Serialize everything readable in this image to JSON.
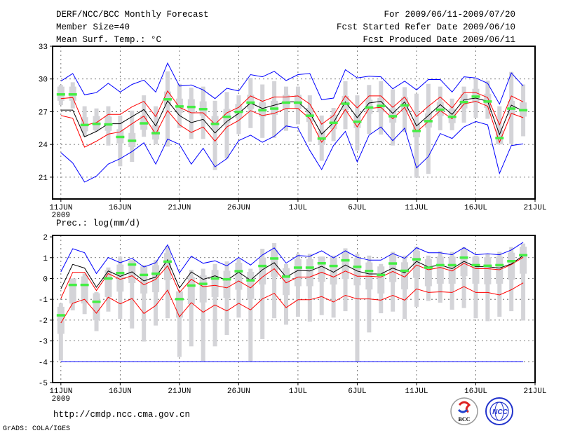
{
  "header": {
    "title": "DERF/NCC/BCC Monthly Forecast",
    "member_size": "Member Size=40",
    "variable": "Mean Surf. Temp.: °C",
    "period": "For 2009/06/11-2009/07/20",
    "start_date": "Fcst Started Refer Date 2009/06/10",
    "produced_date": "Fcst Produced Date 2009/06/11"
  },
  "footer": {
    "url": "http://cmdp.ncc.cma.gov.cn",
    "credit": "GrADS: COLA/IGES",
    "logos": [
      "BCC",
      "NCC"
    ]
  },
  "colors": {
    "max_min": "#0000ff",
    "spread": "#ff0000",
    "mean": "#000000",
    "marker": "#44ee44",
    "bars": "#d4d4d8"
  },
  "chart_data": [
    {
      "type": "line",
      "title": "Mean Surf. Temp.: °C",
      "xlabel": "",
      "ylabel": "",
      "x_tick_labels": [
        "11JUN",
        "16JUN",
        "21JUN",
        "26JUN",
        "1JUL",
        "6JUL",
        "11JUL",
        "16JUL",
        "21JUL"
      ],
      "x_tick_days": [
        0,
        5,
        10,
        15,
        20,
        25,
        30,
        35,
        40
      ],
      "year_label": "2009",
      "xlim": [
        -0.7,
        40
      ],
      "ylim": [
        19,
        33
      ],
      "y_ticks": [
        21,
        24,
        27,
        30,
        33
      ],
      "grid": true,
      "series": [
        {
          "name": "max",
          "color": "#0000ff",
          "values": [
            29.8,
            30.5,
            28.55,
            28.75,
            29.6,
            28.8,
            29.5,
            29.9,
            28.8,
            31.45,
            29.35,
            29.45,
            29.0,
            28.2,
            29.15,
            28.9,
            30.4,
            30.2,
            30.7,
            29.85,
            30.4,
            30.5,
            28.1,
            28.25,
            30.85,
            30.1,
            30.25,
            30.2,
            29.1,
            29.8,
            29.0,
            29.95,
            29.95,
            28.8,
            30.2,
            30.1,
            29.6,
            27.7,
            30.55,
            29.35
          ]
        },
        {
          "name": "min",
          "color": "#0000ff",
          "values": [
            23.25,
            22.3,
            20.55,
            21.1,
            22.2,
            22.7,
            23.35,
            24.15,
            22.2,
            24.5,
            24.0,
            22.2,
            23.65,
            21.95,
            22.7,
            24.35,
            24.85,
            24.2,
            24.75,
            25.7,
            25.5,
            23.45,
            21.7,
            23.9,
            25.2,
            22.4,
            24.85,
            25.6,
            24.35,
            25.5,
            21.85,
            22.9,
            25.0,
            24.55,
            25.6,
            26.1,
            25.8,
            21.35,
            23.9,
            24.05
          ]
        },
        {
          "name": "upper",
          "color": "#ff0000",
          "values": [
            28.2,
            28.3,
            25.75,
            26.0,
            26.75,
            26.75,
            27.45,
            27.95,
            26.55,
            28.9,
            27.4,
            26.9,
            26.9,
            25.85,
            26.9,
            27.4,
            28.45,
            27.95,
            28.35,
            28.35,
            28.45,
            27.7,
            25.85,
            26.65,
            28.45,
            27.35,
            28.45,
            28.45,
            27.4,
            28.35,
            26.55,
            27.5,
            28.35,
            27.35,
            28.75,
            28.75,
            28.3,
            25.8,
            28.45,
            27.9
          ]
        },
        {
          "name": "lower",
          "color": "#ff0000",
          "values": [
            26.65,
            26.4,
            23.75,
            24.3,
            24.95,
            25.15,
            25.9,
            26.6,
            24.95,
            27.1,
            25.8,
            25.1,
            25.6,
            24.3,
            25.6,
            26.2,
            27.1,
            26.65,
            26.85,
            27.3,
            27.3,
            26.35,
            24.2,
            25.5,
            27.2,
            25.6,
            27.3,
            27.4,
            26.35,
            27.4,
            25.15,
            26.1,
            27.1,
            26.35,
            27.7,
            27.95,
            27.5,
            24.2,
            26.85,
            26.45
          ]
        },
        {
          "name": "mean",
          "color": "#000000",
          "values": [
            27.15,
            27.15,
            24.7,
            25.2,
            25.9,
            25.9,
            26.55,
            27.2,
            25.7,
            28.0,
            26.65,
            26.0,
            26.3,
            25.05,
            26.1,
            26.85,
            27.8,
            27.3,
            27.6,
            27.9,
            27.9,
            26.9,
            24.95,
            26.0,
            27.9,
            26.45,
            27.8,
            27.95,
            26.85,
            27.9,
            25.7,
            26.65,
            27.65,
            26.75,
            28.1,
            28.25,
            27.95,
            24.9,
            27.6,
            27.05
          ]
        }
      ],
      "markers": [
        28.6,
        28.6,
        25.8,
        25.9,
        25.85,
        24.7,
        24.35,
        25.95,
        25.05,
        28.15,
        27.5,
        27.45,
        27.25,
        25.9,
        26.55,
        27.0,
        27.85,
        27.15,
        27.3,
        27.85,
        27.85,
        26.65,
        24.55,
        26.0,
        27.75,
        26.1,
        27.4,
        27.55,
        26.6,
        27.6,
        25.25,
        26.15,
        27.2,
        26.55,
        27.9,
        28.4,
        27.95,
        24.6,
        27.3,
        27.15
      ],
      "bars": {
        "whisker_low": [
          27.6,
          27.3,
          24.7,
          25.2,
          23.9,
          22.0,
          22.4,
          24.7,
          24.0,
          23.8,
          25.5,
          24.5,
          24.5,
          21.65,
          22.7,
          24.95,
          25.5,
          24.6,
          24.6,
          25.25,
          25.85,
          24.25,
          22.5,
          24.3,
          25.4,
          23.45,
          24.95,
          24.9,
          23.9,
          25.15,
          20.95,
          21.3,
          25.3,
          25.3,
          26.0,
          26.45,
          26.35,
          24.0,
          24.05,
          24.75
        ],
        "whisker_high": [
          29.45,
          29.7,
          27.5,
          27.3,
          27.5,
          26.65,
          27.1,
          28.5,
          27.5,
          30.7,
          29.55,
          29.2,
          29.3,
          28.0,
          28.8,
          28.5,
          30.1,
          29.5,
          29.8,
          29.3,
          29.3,
          28.5,
          26.65,
          27.35,
          29.8,
          28.5,
          29.45,
          29.8,
          29.05,
          29.25,
          28.65,
          29.55,
          29.3,
          28.2,
          29.3,
          30.0,
          29.85,
          27.5,
          30.65,
          29.5
        ],
        "box_low": [
          28.0,
          28.0,
          25.2,
          25.3,
          25.25,
          24.1,
          23.75,
          25.35,
          24.45,
          27.55,
          26.9,
          26.85,
          26.65,
          25.3,
          25.95,
          26.4,
          27.25,
          26.55,
          26.7,
          27.25,
          27.25,
          26.05,
          23.95,
          25.4,
          27.15,
          25.5,
          26.8,
          26.95,
          26.0,
          27.0,
          24.65,
          25.55,
          26.6,
          25.95,
          27.3,
          27.8,
          27.35,
          24.0,
          26.7,
          26.55
        ],
        "box_high": [
          29.3,
          29.3,
          26.5,
          26.6,
          26.55,
          25.4,
          25.05,
          26.65,
          25.75,
          28.85,
          28.2,
          28.15,
          27.95,
          26.6,
          27.25,
          27.7,
          28.55,
          27.85,
          28.0,
          28.55,
          28.55,
          27.35,
          25.25,
          26.7,
          28.45,
          26.8,
          28.1,
          28.25,
          27.3,
          28.3,
          25.95,
          26.85,
          27.9,
          27.25,
          28.6,
          29.1,
          28.65,
          25.3,
          28.0,
          27.85
        ]
      }
    },
    {
      "type": "line",
      "title": "Prec.: log(mm/d)",
      "xlabel": "",
      "ylabel": "",
      "x_tick_labels": [
        "11JUN",
        "16JUN",
        "21JUN",
        "26JUN",
        "1JUL",
        "6JUL",
        "11JUL",
        "16JUL",
        "21JUL"
      ],
      "x_tick_days": [
        0,
        5,
        10,
        15,
        20,
        25,
        30,
        35,
        40
      ],
      "year_label": "2009",
      "xlim": [
        -0.7,
        40
      ],
      "ylim": [
        -5,
        2.07
      ],
      "y_ticks": [
        -5,
        -4,
        -3,
        -2,
        -1,
        0,
        1,
        2
      ],
      "grid": true,
      "series": [
        {
          "name": "max",
          "color": "#0000ff",
          "values": [
            0.32,
            1.43,
            1.24,
            0.24,
            1.01,
            0.76,
            0.97,
            0.55,
            0.76,
            1.62,
            0.27,
            1.07,
            0.73,
            0.85,
            0.61,
            1.01,
            0.65,
            1.13,
            1.47,
            0.74,
            1.1,
            1.07,
            1.33,
            0.99,
            1.33,
            1.02,
            0.88,
            0.88,
            1.2,
            0.97,
            1.48,
            1.24,
            1.24,
            1.14,
            1.48,
            1.14,
            1.19,
            1.14,
            1.37,
            1.74
          ]
        },
        {
          "name": "min",
          "color": "#0000ff",
          "values": [
            -4,
            -4,
            -4,
            -4,
            -4,
            -4,
            -4,
            -4,
            -4,
            -4,
            -4,
            -4,
            -4,
            -4,
            -4,
            -4,
            -4,
            -4,
            -4,
            -4,
            -4,
            -4,
            -4,
            -4,
            -4,
            -4,
            -4,
            -4,
            -4,
            -4,
            -4,
            -4,
            -4,
            -4,
            -4,
            -4,
            -4,
            -4,
            -4,
            -4
          ]
        },
        {
          "name": "upper",
          "color": "#ff0000",
          "values": [
            -0.96,
            0.3,
            0.3,
            -0.58,
            0.24,
            -0.04,
            0.13,
            -0.3,
            -0.04,
            0.61,
            -0.67,
            -0.04,
            -0.39,
            -0.33,
            -0.45,
            -0.12,
            -0.45,
            0.07,
            0.47,
            -0.21,
            0.07,
            0.07,
            0.3,
            0.07,
            0.36,
            0.11,
            0.11,
            0.07,
            0.34,
            0.07,
            0.65,
            0.42,
            0.53,
            0.36,
            0.73,
            0.47,
            0.47,
            0.42,
            0.67,
            1.02
          ]
        },
        {
          "name": "lower",
          "color": "#ff0000",
          "values": [
            -2.14,
            -1.19,
            -1.0,
            -1.67,
            -0.9,
            -1.22,
            -0.96,
            -1.68,
            -1.3,
            -0.56,
            -1.84,
            -1.16,
            -1.62,
            -1.27,
            -1.56,
            -1.19,
            -1.51,
            -0.98,
            -0.71,
            -1.4,
            -1.02,
            -1.02,
            -0.87,
            -1.13,
            -0.81,
            -0.98,
            -0.98,
            -1.04,
            -0.81,
            -1.04,
            -0.5,
            -0.67,
            -0.64,
            -0.67,
            -0.39,
            -0.67,
            -0.67,
            -0.79,
            -0.54,
            -0.21
          ]
        },
        {
          "name": "mean",
          "color": "#000000",
          "values": [
            -0.5,
            0.68,
            0.5,
            -0.42,
            0.36,
            0.1,
            0.32,
            -0.12,
            0.07,
            0.9,
            -0.45,
            0.32,
            -0.04,
            0.13,
            -0.08,
            0.3,
            -0.08,
            0.42,
            0.76,
            0.07,
            0.39,
            0.36,
            0.59,
            0.3,
            0.65,
            0.36,
            0.22,
            0.22,
            0.5,
            0.27,
            0.82,
            0.55,
            0.65,
            0.47,
            0.82,
            0.57,
            0.57,
            0.5,
            0.7,
            1.1
          ]
        }
      ],
      "markers": [
        -1.76,
        -0.3,
        -0.3,
        -1.11,
        0.01,
        0.27,
        0.68,
        0.18,
        0.24,
        0.82,
        -0.98,
        -0.33,
        -0.25,
        0.01,
        -0.03,
        0.36,
        -0.08,
        0.61,
        0.97,
        0.1,
        0.53,
        0.53,
        0.74,
        0.61,
        0.88,
        0.57,
        0.37,
        0.18,
        0.73,
        0.38,
        0.93,
        0.53,
        0.65,
        0.65,
        1.01,
        0.65,
        0.62,
        0.65,
        0.84,
        1.13
      ],
      "bars": {
        "whisker_low": [
          -3.94,
          -1.53,
          -1.71,
          -2.53,
          -1.59,
          -1.94,
          -2.4,
          -3.03,
          -2.26,
          -1.91,
          -3.77,
          -3.26,
          -3.97,
          -3.26,
          -2.71,
          -1.88,
          -3.97,
          -2.91,
          -1.91,
          -2.22,
          -1.84,
          -2.07,
          -1.76,
          -1.88,
          -1.57,
          -3.97,
          -2.59,
          -1.67,
          -1.59,
          -1.94,
          -1.36,
          -1.08,
          -1.16,
          -1.5,
          -1.42,
          -1.91,
          -2.05,
          -1.84,
          -1.57,
          -2.02
        ],
        "whisker_high": [
          -1.19,
          0.0,
          0.24,
          -0.65,
          0.53,
          1.05,
          0.88,
          0.65,
          0.88,
          1.56,
          -0.62,
          0.42,
          0.47,
          0.7,
          0.82,
          0.93,
          0.47,
          1.43,
          1.7,
          0.7,
          1.19,
          1.19,
          1.05,
          1.1,
          1.45,
          1.19,
          1.1,
          0.7,
          1.28,
          1.1,
          1.53,
          1.1,
          1.31,
          1.28,
          1.51,
          1.1,
          1.16,
          1.28,
          1.51,
          1.68
        ],
        "box_low": [
          -2.66,
          -1.2,
          -1.2,
          -2.01,
          -0.89,
          -0.63,
          -0.22,
          -0.72,
          -0.66,
          -0.08,
          -1.88,
          -1.23,
          -1.15,
          -0.89,
          -0.93,
          -0.54,
          -0.98,
          -0.29,
          0.07,
          -0.8,
          -0.37,
          -0.37,
          -0.16,
          -0.29,
          -0.02,
          -0.33,
          -0.53,
          -0.72,
          -0.17,
          -0.52,
          0.03,
          -0.37,
          -0.25,
          -0.25,
          0.11,
          -0.25,
          -0.28,
          -0.25,
          -0.06,
          0.23
        ],
        "box_high": [
          -1.36,
          0.0,
          0.1,
          -0.71,
          0.41,
          0.67,
          0.88,
          0.58,
          0.64,
          1.22,
          -0.62,
          0.07,
          0.15,
          0.41,
          0.37,
          0.76,
          0.32,
          1.01,
          1.37,
          0.5,
          0.93,
          0.93,
          1.05,
          1.01,
          1.28,
          0.97,
          0.77,
          0.58,
          1.13,
          0.78,
          1.33,
          0.93,
          1.05,
          1.05,
          1.41,
          1.05,
          1.02,
          1.05,
          1.24,
          1.53
        ]
      }
    }
  ]
}
